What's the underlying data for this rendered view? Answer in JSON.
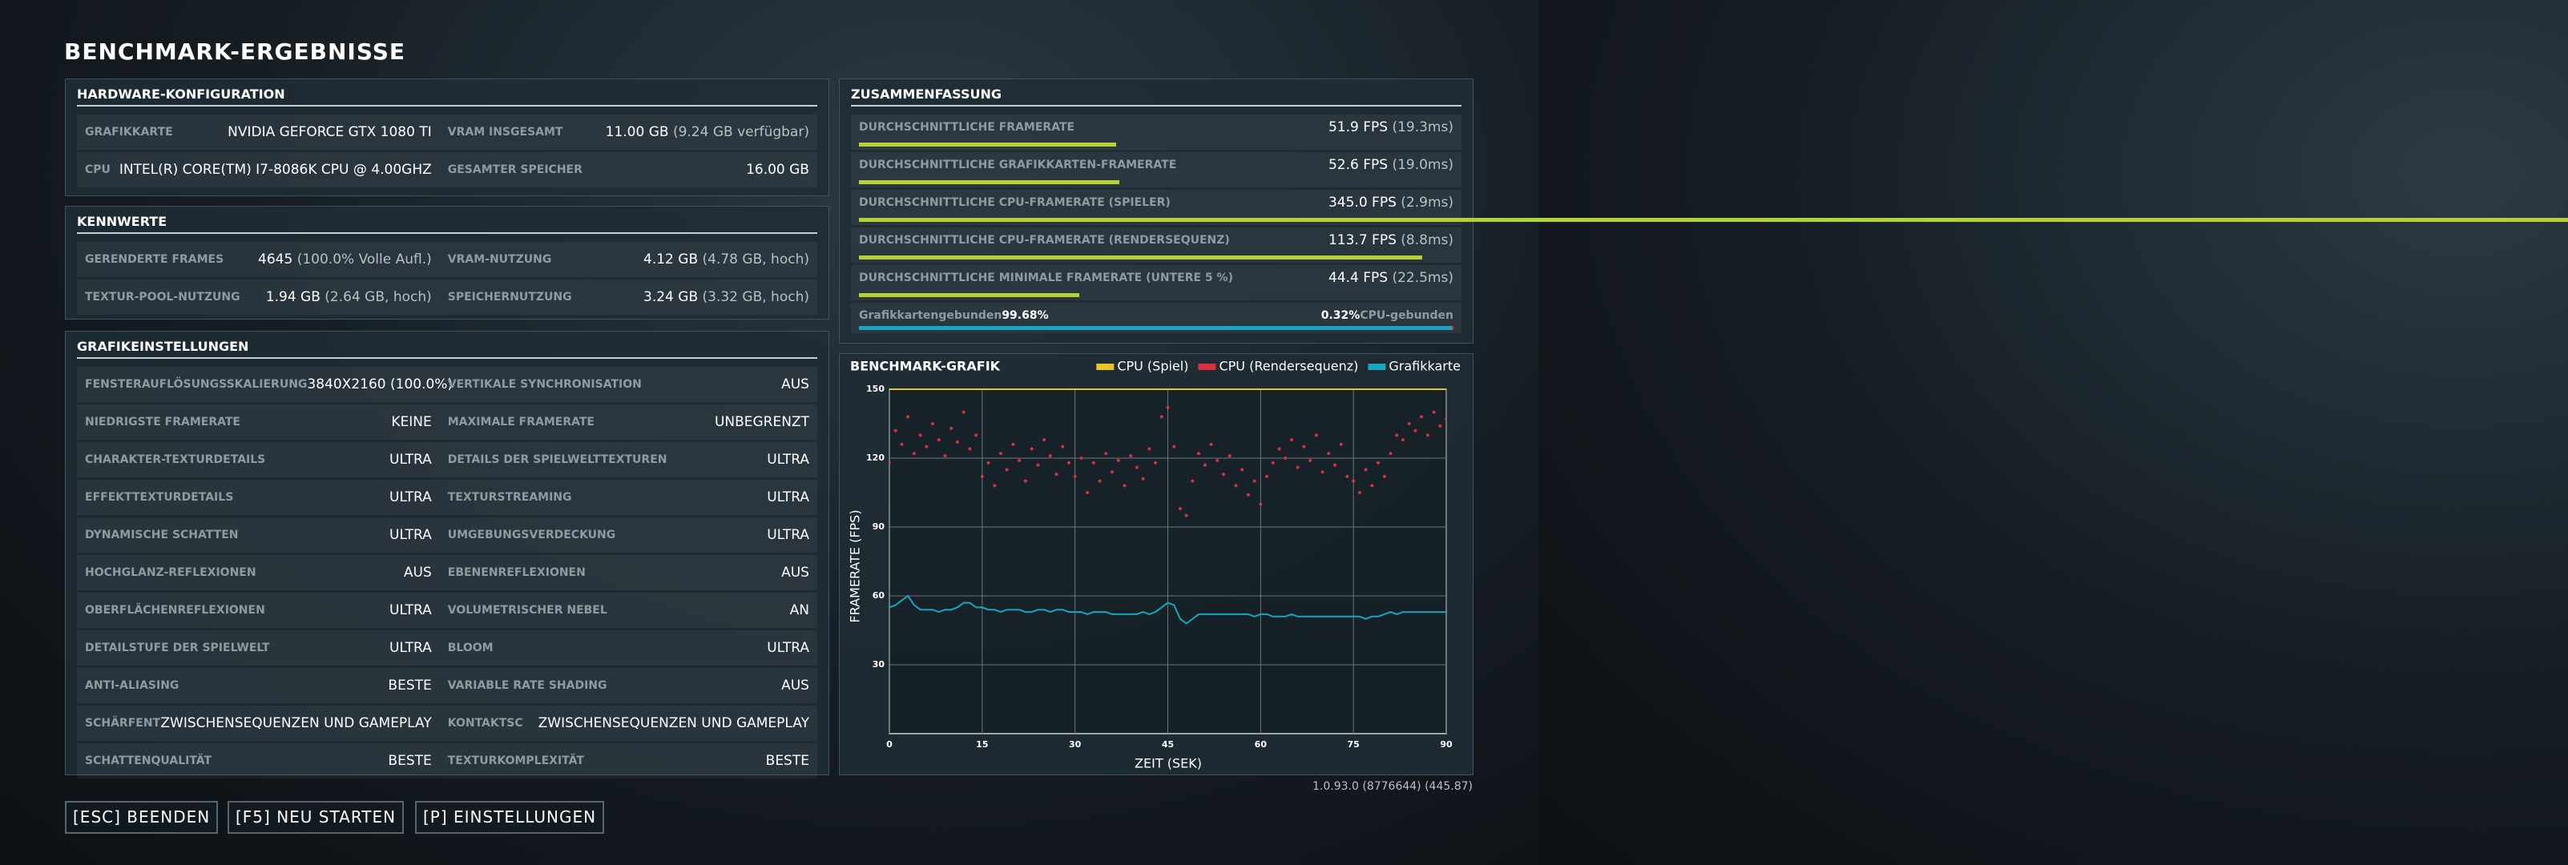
{
  "title": "BENCHMARK-ERGEBNISSE",
  "panels": [
    {
      "heading": "HARDWARE-KONFIGURATION",
      "rows": [
        [
          {
            "label": "GRAFIKKARTE",
            "value": "NVIDIA GEFORCE GTX 1080 TI"
          },
          {
            "label": "VRAM INSGESAMT",
            "value": "11.00 GB",
            "note": "(9.24 GB verfügbar)"
          }
        ],
        [
          {
            "label": "CPU",
            "value": "INTEL(R) CORE(TM) I7-8086K CPU @ 4.00GHZ"
          },
          {
            "label": "GESAMTER SPEICHER",
            "value": "16.00 GB"
          }
        ]
      ]
    },
    {
      "heading": "KENNWERTE",
      "rows": [
        [
          {
            "label": "GERENDERTE FRAMES",
            "value": "4645",
            "note": "(100.0% Volle Aufl.)"
          },
          {
            "label": "VRAM-NUTZUNG",
            "value": "4.12 GB",
            "note": "(4.78 GB, hoch)"
          }
        ],
        [
          {
            "label": "TEXTUR-POOL-NUTZUNG",
            "value": "1.94 GB",
            "note": "(2.64 GB, hoch)"
          },
          {
            "label": "SPEICHERNUTZUNG",
            "value": "3.24 GB",
            "note": "(3.32 GB, hoch)"
          }
        ]
      ]
    },
    {
      "heading": "GRAFIKEINSTELLUNGEN",
      "rows": [
        [
          {
            "label": "FENSTERAUFLÖSUNGSSKALIERUNG",
            "value": "3840X2160 (100.0%)"
          },
          {
            "label": "VERTIKALE SYNCHRONISATION",
            "value": "AUS"
          }
        ],
        [
          {
            "label": "NIEDRIGSTE FRAMERATE",
            "value": "KEINE"
          },
          {
            "label": "MAXIMALE FRAMERATE",
            "value": "UNBEGRENZT"
          }
        ],
        [
          {
            "label": "CHARAKTER-TEXTURDETAILS",
            "value": "ULTRA"
          },
          {
            "label": "DETAILS DER SPIELWELTTEXTUREN",
            "value": "ULTRA"
          }
        ],
        [
          {
            "label": "EFFEKTTEXTURDETAILS",
            "value": "ULTRA"
          },
          {
            "label": "TEXTURSTREAMING",
            "value": "ULTRA"
          }
        ],
        [
          {
            "label": "DYNAMISCHE SCHATTEN",
            "value": "ULTRA"
          },
          {
            "label": "UMGEBUNGSVERDECKUNG",
            "value": "ULTRA"
          }
        ],
        [
          {
            "label": "HOCHGLANZ-REFLEXIONEN",
            "value": "AUS"
          },
          {
            "label": "EBENENREFLEXIONEN",
            "value": "AUS"
          }
        ],
        [
          {
            "label": "OBERFLÄCHENREFLEXIONEN",
            "value": "ULTRA"
          },
          {
            "label": "VOLUMETRISCHER NEBEL",
            "value": "AN"
          }
        ],
        [
          {
            "label": "DETAILSTUFE DER SPIELWELT",
            "value": "ULTRA"
          },
          {
            "label": "BLOOM",
            "value": "ULTRA"
          }
        ],
        [
          {
            "label": "ANTI-ALIASING",
            "value": "BESTE"
          },
          {
            "label": "VARIABLE RATE SHADING",
            "value": "AUS"
          }
        ],
        [
          {
            "label": "SCHÄRFENT",
            "value": "ZWISCHENSEQUENZEN UND GAMEPLAY"
          },
          {
            "label": "KONTAKTSC",
            "value": "ZWISCHENSEQUENZEN UND GAMEPLAY"
          }
        ],
        [
          {
            "label": "SCHATTENQUALITÄT",
            "value": "BESTE"
          },
          {
            "label": "TEXTURKOMPLEXITÄT",
            "value": "BESTE"
          }
        ]
      ]
    }
  ],
  "summary": {
    "heading": "ZUSAMMENFASSUNG",
    "bar_lim": [
      0,
      120
    ],
    "bar_color": "#b4d235",
    "rows": [
      {
        "label": "DURCHSCHNITTLICHE FRAMERATE",
        "value": 51.9,
        "value_label": "51.9 FPS",
        "note": "(19.3ms)"
      },
      {
        "label": "DURCHSCHNITTLICHE GRAFIKKARTEN-FRAMERATE",
        "value": 52.6,
        "value_label": "52.6 FPS",
        "note": "(19.0ms)"
      },
      {
        "label": "DURCHSCHNITTLICHE CPU-FRAMERATE (SPIELER)",
        "value": 345.0,
        "value_label": "345.0 FPS",
        "note": "(2.9ms)"
      },
      {
        "label": "DURCHSCHNITTLICHE CPU-FRAMERATE (RENDERSEQUENZ)",
        "value": 113.7,
        "value_label": "113.7 FPS",
        "note": "(8.8ms)"
      },
      {
        "label": "DURCHSCHNITTLICHE MINIMALE FRAMERATE (UNTERE 5 %)",
        "value": 44.4,
        "value_label": "44.4 FPS",
        "note": "(22.5ms)"
      }
    ],
    "bound": {
      "gpu": {
        "label": "Grafikkartengebunden",
        "value": 99.68,
        "value_label": "99.68%",
        "color": "#17a6c0"
      },
      "cpu": {
        "label": "CPU-gebunden",
        "value": 0.32,
        "value_label": "0.32%",
        "color": "#d8303e"
      }
    }
  },
  "chart_data": {
    "type": "line",
    "title": "BENCHMARK-GRAFIK",
    "x_label": "ZEIT (SEK)",
    "y_label": "FRAMERATE (FPS)",
    "xlim": [
      0,
      90
    ],
    "ylim": [
      0,
      150
    ],
    "xticks": [
      0,
      15,
      30,
      45,
      60,
      75,
      90
    ],
    "yticks": [
      30,
      60,
      90,
      120,
      150
    ],
    "grid": true,
    "x": [
      0,
      1,
      2,
      3,
      4,
      5,
      6,
      7,
      8,
      9,
      10,
      11,
      12,
      13,
      14,
      15,
      16,
      17,
      18,
      19,
      20,
      21,
      22,
      23,
      24,
      25,
      26,
      27,
      28,
      29,
      30,
      31,
      32,
      33,
      34,
      35,
      36,
      37,
      38,
      39,
      40,
      41,
      42,
      43,
      44,
      45,
      46,
      47,
      48,
      49,
      50,
      51,
      52,
      53,
      54,
      55,
      56,
      57,
      58,
      59,
      60,
      61,
      62,
      63,
      64,
      65,
      66,
      67,
      68,
      69,
      70,
      71,
      72,
      73,
      74,
      75,
      76,
      77,
      78,
      79,
      80,
      81,
      82,
      83,
      84,
      85,
      86,
      87,
      88,
      89,
      90
    ],
    "series": [
      {
        "name": "CPU (Spiel)",
        "color": "#e8c42a",
        "style": "line",
        "x": [
          0,
          90
        ],
        "values": [
          150,
          150
        ]
      },
      {
        "name": "CPU (Rendersequenz)",
        "color": "#d8303e",
        "style": "points",
        "values": [
          118,
          132,
          126,
          138,
          122,
          130,
          125,
          135,
          128,
          121,
          133,
          127,
          140,
          124,
          130,
          112,
          118,
          108,
          122,
          115,
          126,
          119,
          110,
          124,
          117,
          128,
          121,
          113,
          125,
          118,
          112,
          120,
          105,
          118,
          110,
          122,
          114,
          119,
          108,
          121,
          116,
          111,
          124,
          118,
          138,
          142,
          125,
          98,
          95,
          110,
          122,
          117,
          126,
          119,
          113,
          121,
          108,
          115,
          104,
          110,
          100,
          112,
          118,
          124,
          120,
          128,
          116,
          125,
          119,
          130,
          114,
          122,
          117,
          126,
          112,
          110,
          105,
          115,
          108,
          118,
          112,
          122,
          130,
          128,
          135,
          132,
          138,
          130,
          140,
          134,
          137
        ]
      },
      {
        "name": "Grafikkarte",
        "color": "#17a6c0",
        "style": "line",
        "values": [
          55,
          56,
          58,
          60,
          56,
          54,
          54,
          54,
          53,
          54,
          54,
          55,
          57,
          57,
          55,
          55,
          54,
          54,
          53,
          54,
          54,
          54,
          53,
          53,
          54,
          54,
          53,
          54,
          54,
          53,
          53,
          53,
          52,
          53,
          53,
          53,
          52,
          52,
          52,
          52,
          52,
          53,
          52,
          53,
          55,
          57,
          56,
          50,
          48,
          50,
          52,
          52,
          52,
          52,
          52,
          52,
          52,
          52,
          52,
          51,
          52,
          52,
          51,
          51,
          51,
          52,
          51,
          51,
          51,
          51,
          51,
          51,
          51,
          51,
          51,
          51,
          51,
          50,
          51,
          51,
          52,
          53,
          52,
          53,
          53,
          53,
          53,
          53,
          53,
          53,
          53
        ]
      }
    ]
  },
  "version": "1.0.93.0 (8776644) (445.87)",
  "buttons": [
    "[ESC] BEENDEN",
    "[F5] NEU STARTEN",
    "[P] EINSTELLUNGEN"
  ]
}
